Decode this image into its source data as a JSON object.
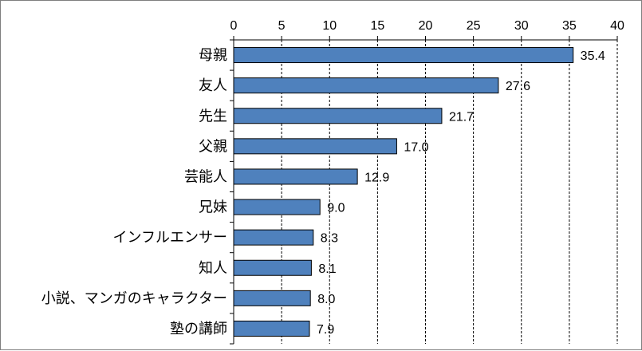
{
  "chart_data": {
    "type": "bar",
    "orientation": "horizontal",
    "categories": [
      "母親",
      "友人",
      "先生",
      "父親",
      "芸能人",
      "兄妹",
      "インフルエンサー",
      "知人",
      "小説、マンガのキャラクター",
      "塾の講師"
    ],
    "values": [
      35.4,
      27.6,
      21.7,
      17.0,
      12.9,
      9.0,
      8.3,
      8.1,
      8.0,
      7.9
    ],
    "value_labels": [
      "35.4",
      "27.6",
      "21.7",
      "17.0",
      "12.9",
      "9.0",
      "8.3",
      "8.1",
      "8.0",
      "7.9"
    ],
    "xlim": [
      0,
      40
    ],
    "x_ticks": [
      "0",
      "5",
      "10",
      "15",
      "20",
      "25",
      "30",
      "35",
      "40"
    ],
    "x_axis_position": "top",
    "grid": "vertical dashed",
    "legend": "none",
    "title": "",
    "xlabel": "",
    "ylabel": "",
    "colors": {
      "bar_fill": "#4f81bd",
      "bar_stroke": "#000000",
      "grid": "#000000",
      "frame": "#7f7f7f"
    }
  }
}
